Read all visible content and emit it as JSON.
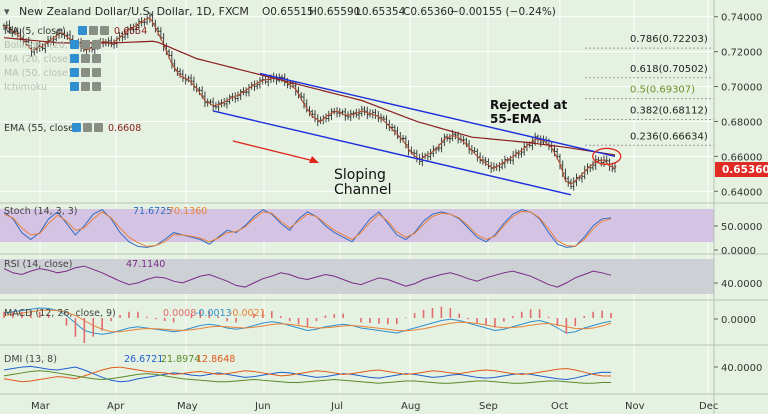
{
  "header": {
    "symbol_title": "New Zealand Dollar/U.S. Dollar, 1D, FXCM",
    "ohlc": [
      {
        "label": "O",
        "value": "0.65515"
      },
      {
        "label": "H",
        "value": "0.65590"
      },
      {
        "label": "L",
        "value": "0.65354"
      },
      {
        "label": "C",
        "value": "0.65360"
      }
    ],
    "change": "−0.00155 (−0.24%)"
  },
  "colors": {
    "background": "#e6f2e1",
    "grid": "#ffffff",
    "price_bar": "#2f2f2f",
    "ma5": "#b5492c",
    "ema55": "#8a1e1e",
    "channel": "#1d2ee0",
    "arrow": "#e0261c",
    "fib_line": "#9a9a9a",
    "fib_05_text": "#6c8f2a",
    "last_price_tag": "#e02a24",
    "stoch_band": "#d5c3e3",
    "stoch_k": "#2f6cc4",
    "stoch_d": "#e8823a",
    "rsi_band": "#cdd0d4",
    "rsi_line": "#7b2b8a",
    "macd_line": "#2f8fd0",
    "macd_signal": "#e8823a",
    "macd_hist": "#e26b6b",
    "dmi_plus": "#1f5fd0",
    "dmi_minus": "#e05a1a",
    "adx": "#5a8a2a"
  },
  "legend": [
    {
      "text": "MA (5, close)",
      "value": "0.6554",
      "value_color": "#8a1e1e"
    },
    {
      "text": "Bollinger (20, 2)",
      "value": "",
      "value_color": "#8a1e1e"
    },
    {
      "text": "MA (20, close)",
      "value": "",
      "value_color": "#8a1e1e"
    },
    {
      "text": "MA (50, close)",
      "value": "",
      "value_color": "#8a1e1e"
    },
    {
      "text": "Ichimoku",
      "value": "",
      "value_color": "#8a1e1e"
    },
    {
      "text": "EMA (55, close)",
      "value": "0.6608",
      "value_color": "#8a1e1e"
    }
  ],
  "annotations": {
    "channel_label": "Sloping\nChannel",
    "rejection_label": "Rejected at\n55-EMA"
  },
  "last_price_tag": "0.65360",
  "fib_levels": [
    {
      "label": "0.786(0.72203)",
      "value": 0.72203
    },
    {
      "label": "0.618(0.70502)",
      "value": 0.70502
    },
    {
      "label": "0.5(0.69307)",
      "value": 0.69307
    },
    {
      "label": "0.382(0.68112)",
      "value": 0.68112
    },
    {
      "label": "0.236(0.66634)",
      "value": 0.66634
    }
  ],
  "time_axis": [
    "Mar",
    "Apr",
    "May",
    "Jun",
    "Jul",
    "Aug",
    "Sep",
    "Oct",
    "Nov",
    "Dec"
  ],
  "chart_data": [
    {
      "id": "price",
      "type": "ohlc",
      "ylim": [
        0.635,
        0.745
      ],
      "yticks": [
        "0.74000",
        "0.72000",
        "0.70000",
        "0.68000",
        "0.66000",
        "0.64000"
      ],
      "x_months": [
        "Mar",
        "Apr",
        "May",
        "Jun",
        "Jul",
        "Aug",
        "Sep",
        "Oct"
      ],
      "close_path": [
        [
          0,
          0.735
        ],
        [
          3,
          0.732
        ],
        [
          6,
          0.7285
        ],
        [
          10,
          0.721
        ],
        [
          14,
          0.723
        ],
        [
          18,
          0.728
        ],
        [
          21,
          0.731
        ],
        [
          24,
          0.727
        ],
        [
          27,
          0.724
        ],
        [
          30,
          0.721
        ],
        [
          33,
          0.723
        ],
        [
          36,
          0.726
        ],
        [
          39,
          0.7245
        ],
        [
          42,
          0.728
        ],
        [
          45,
          0.732
        ],
        [
          48,
          0.735
        ],
        [
          51,
          0.738
        ],
        [
          53,
          0.7395
        ],
        [
          55,
          0.734
        ],
        [
          58,
          0.724
        ],
        [
          61,
          0.713
        ],
        [
          64,
          0.706
        ],
        [
          67,
          0.704
        ],
        [
          70,
          0.699
        ],
        [
          73,
          0.692
        ],
        [
          76,
          0.689
        ],
        [
          79,
          0.69
        ],
        [
          82,
          0.693
        ],
        [
          85,
          0.695
        ],
        [
          88,
          0.698
        ],
        [
          91,
          0.701
        ],
        [
          94,
          0.7035
        ],
        [
          97,
          0.7045
        ],
        [
          100,
          0.705
        ],
        [
          103,
          0.702
        ],
        [
          106,
          0.6985
        ],
        [
          109,
          0.69
        ],
        [
          112,
          0.683
        ],
        [
          115,
          0.68
        ],
        [
          118,
          0.684
        ],
        [
          121,
          0.686
        ],
        [
          124,
          0.6835
        ],
        [
          127,
          0.684
        ],
        [
          130,
          0.686
        ],
        [
          133,
          0.6845
        ],
        [
          136,
          0.683
        ],
        [
          139,
          0.679
        ],
        [
          142,
          0.674
        ],
        [
          145,
          0.669
        ],
        [
          148,
          0.662
        ],
        [
          151,
          0.658
        ],
        [
          154,
          0.661
        ],
        [
          157,
          0.664
        ],
        [
          160,
          0.67
        ],
        [
          163,
          0.672
        ],
        [
          166,
          0.67
        ],
        [
          169,
          0.665
        ],
        [
          172,
          0.66
        ],
        [
          175,
          0.656
        ],
        [
          178,
          0.653
        ],
        [
          181,
          0.656
        ],
        [
          184,
          0.659
        ],
        [
          187,
          0.662
        ],
        [
          190,
          0.666
        ],
        [
          193,
          0.67
        ],
        [
          196,
          0.669
        ],
        [
          199,
          0.665
        ],
        [
          202,
          0.656
        ],
        [
          204,
          0.646
        ],
        [
          206,
          0.644
        ],
        [
          209,
          0.648
        ],
        [
          212,
          0.653
        ],
        [
          215,
          0.657
        ],
        [
          218,
          0.658
        ],
        [
          220,
          0.6545
        ],
        [
          222,
          0.6536
        ]
      ],
      "ema55_path": [
        [
          0,
          0.728
        ],
        [
          20,
          0.725
        ],
        [
          40,
          0.725
        ],
        [
          55,
          0.726
        ],
        [
          70,
          0.716
        ],
        [
          90,
          0.708
        ],
        [
          110,
          0.7
        ],
        [
          130,
          0.692
        ],
        [
          150,
          0.68
        ],
        [
          170,
          0.671
        ],
        [
          190,
          0.668
        ],
        [
          205,
          0.665
        ],
        [
          222,
          0.6608
        ]
      ],
      "channel_upper": [
        [
          93,
          0.7075
        ],
        [
          222,
          0.66
        ]
      ],
      "channel_lower": [
        [
          76,
          0.686
        ],
        [
          206,
          0.638
        ]
      ],
      "highlight_point": [
        219,
        0.66
      ]
    },
    {
      "id": "stoch",
      "type": "line",
      "title": "Stoch (14, 3, 3)",
      "values_label": [
        "71.6725",
        "70.1360"
      ],
      "ylim": [
        0,
        100
      ],
      "yticks": [
        "50.0000",
        "0.0000"
      ],
      "band": [
        20,
        80
      ],
      "series": [
        {
          "name": "%K",
          "values": [
            85,
            70,
            40,
            25,
            40,
            70,
            85,
            60,
            35,
            55,
            80,
            90,
            70,
            40,
            20,
            10,
            8,
            12,
            25,
            40,
            35,
            30,
            25,
            15,
            30,
            45,
            40,
            55,
            75,
            90,
            80,
            60,
            45,
            70,
            85,
            75,
            55,
            40,
            30,
            20,
            45,
            70,
            85,
            60,
            35,
            25,
            40,
            65,
            80,
            85,
            80,
            70,
            50,
            30,
            20,
            35,
            60,
            80,
            90,
            85,
            70,
            40,
            15,
            8,
            10,
            30,
            55,
            70,
            72
          ]
        },
        {
          "name": "%D",
          "values": [
            80,
            72,
            50,
            35,
            38,
            60,
            78,
            65,
            45,
            50,
            70,
            85,
            72,
            50,
            30,
            18,
            10,
            12,
            20,
            35,
            35,
            32,
            28,
            20,
            28,
            40,
            42,
            52,
            70,
            85,
            82,
            65,
            50,
            65,
            80,
            75,
            60,
            45,
            35,
            25,
            40,
            62,
            80,
            65,
            42,
            30,
            38,
            58,
            75,
            82,
            80,
            72,
            55,
            35,
            25,
            32,
            55,
            75,
            86,
            85,
            72,
            48,
            22,
            12,
            10,
            25,
            48,
            65,
            70
          ]
        }
      ]
    },
    {
      "id": "rsi",
      "type": "line",
      "title": "RSI (14, close)",
      "values_label": [
        "47.1140"
      ],
      "ylim": [
        20,
        70
      ],
      "yticks": [
        "40.0000"
      ],
      "band": [
        30,
        70
      ],
      "series": [
        {
          "name": "RSI",
          "values": [
            55,
            50,
            48,
            52,
            55,
            53,
            50,
            52,
            56,
            58,
            54,
            50,
            45,
            40,
            36,
            38,
            42,
            45,
            44,
            40,
            38,
            42,
            46,
            48,
            44,
            40,
            35,
            33,
            38,
            43,
            46,
            50,
            48,
            44,
            42,
            45,
            48,
            46,
            42,
            38,
            36,
            40,
            44,
            42,
            38,
            34,
            37,
            42,
            45,
            48,
            50,
            47,
            43,
            40,
            44,
            47,
            50,
            52,
            49,
            46,
            41,
            36,
            33,
            38,
            44,
            48,
            52,
            50,
            47
          ]
        }
      ]
    },
    {
      "id": "macd",
      "type": "line",
      "title": "MACD (12, 26, close, 9)",
      "values_label": [
        "0.0008",
        "-0.0013",
        "-0.0021"
      ],
      "ylim": [
        -0.01,
        0.006
      ],
      "yticks": [
        "0.0000"
      ],
      "series": [
        {
          "name": "MACD",
          "values": [
            0.002,
            0.0025,
            0.003,
            0.0035,
            0.004,
            0.0038,
            0.003,
            0.001,
            -0.002,
            -0.005,
            -0.006,
            -0.0065,
            -0.006,
            -0.005,
            -0.004,
            -0.0035,
            -0.004,
            -0.0045,
            -0.005,
            -0.0055,
            -0.005,
            -0.004,
            -0.003,
            -0.0025,
            -0.003,
            -0.004,
            -0.0045,
            -0.004,
            -0.003,
            -0.002,
            -0.0015,
            -0.002,
            -0.003,
            -0.004,
            -0.005,
            -0.0045,
            -0.0035,
            -0.003,
            -0.0025,
            -0.003,
            -0.004,
            -0.0045,
            -0.005,
            -0.0055,
            -0.006,
            -0.005,
            -0.004,
            -0.003,
            -0.002,
            -0.001,
            -0.0005,
            -0.001,
            -0.002,
            -0.003,
            -0.004,
            -0.005,
            -0.0045,
            -0.0035,
            -0.0025,
            -0.0015,
            -0.001,
            -0.002,
            -0.004,
            -0.006,
            -0.0055,
            -0.004,
            -0.003,
            -0.002,
            -0.0013
          ]
        },
        {
          "name": "Signal",
          "values": [
            0.001,
            0.0015,
            0.002,
            0.0025,
            0.003,
            0.0032,
            0.003,
            0.0022,
            0.001,
            -0.001,
            -0.003,
            -0.0045,
            -0.0055,
            -0.0055,
            -0.005,
            -0.0045,
            -0.0042,
            -0.0043,
            -0.0045,
            -0.0048,
            -0.005,
            -0.0047,
            -0.0042,
            -0.0036,
            -0.0033,
            -0.0035,
            -0.0038,
            -0.004,
            -0.0037,
            -0.0032,
            -0.0026,
            -0.0023,
            -0.0025,
            -0.003,
            -0.0036,
            -0.004,
            -0.0039,
            -0.0036,
            -0.0032,
            -0.003,
            -0.0033,
            -0.0037,
            -0.0041,
            -0.0045,
            -0.005,
            -0.0051,
            -0.0048,
            -0.0043,
            -0.0036,
            -0.0028,
            -0.0021,
            -0.0017,
            -0.0018,
            -0.0022,
            -0.0028,
            -0.0035,
            -0.0039,
            -0.0038,
            -0.0035,
            -0.0029,
            -0.0024,
            -0.0022,
            -0.0027,
            -0.0035,
            -0.0042,
            -0.0043,
            -0.004,
            -0.0032,
            -0.0021
          ]
        }
      ]
    },
    {
      "id": "dmi",
      "type": "line",
      "title": "DMI (13, 8)",
      "values_label": [
        "26.6721",
        "21.8974",
        "12.8648"
      ],
      "ylim": [
        0,
        60
      ],
      "yticks": [
        "40.0000"
      ],
      "series": [
        {
          "name": "+DI",
          "values": [
            30,
            32,
            34,
            35,
            33,
            31,
            30,
            32,
            34,
            30,
            25,
            20,
            16,
            14,
            15,
            18,
            20,
            22,
            24,
            26,
            25,
            23,
            22,
            24,
            26,
            24,
            22,
            20,
            21,
            23,
            25,
            27,
            26,
            24,
            22,
            20,
            21,
            23,
            25,
            24,
            22,
            20,
            19,
            21,
            23,
            25,
            24,
            22,
            20,
            21,
            23,
            24,
            22,
            20,
            19,
            20,
            22,
            24,
            25,
            24,
            22,
            20,
            18,
            17,
            19,
            22,
            25,
            27,
            26.7
          ]
        },
        {
          "name": "-DI",
          "values": [
            18,
            16,
            14,
            15,
            17,
            19,
            21,
            20,
            18,
            22,
            26,
            30,
            33,
            34,
            32,
            30,
            28,
            27,
            26,
            24,
            25,
            27,
            28,
            26,
            24,
            25,
            27,
            29,
            28,
            26,
            24,
            22,
            23,
            25,
            27,
            29,
            28,
            26,
            24,
            25,
            27,
            29,
            30,
            28,
            26,
            24,
            25,
            27,
            29,
            28,
            26,
            25,
            27,
            29,
            30,
            29,
            27,
            25,
            24,
            25,
            27,
            29,
            31,
            32,
            30,
            27,
            24,
            22,
            21.9
          ]
        },
        {
          "name": "ADX",
          "values": [
            22,
            24,
            26,
            28,
            29,
            28,
            26,
            24,
            22,
            20,
            18,
            17,
            18,
            20,
            22,
            24,
            25,
            24,
            22,
            20,
            18,
            17,
            16,
            15,
            14,
            14,
            15,
            16,
            17,
            16,
            15,
            14,
            13,
            13,
            14,
            15,
            16,
            17,
            16,
            15,
            14,
            13,
            12,
            13,
            14,
            15,
            15,
            14,
            13,
            12,
            12,
            13,
            14,
            15,
            15,
            14,
            13,
            12,
            12,
            13,
            14,
            15,
            15,
            14,
            13,
            12,
            12,
            13,
            12.9
          ]
        }
      ]
    }
  ]
}
